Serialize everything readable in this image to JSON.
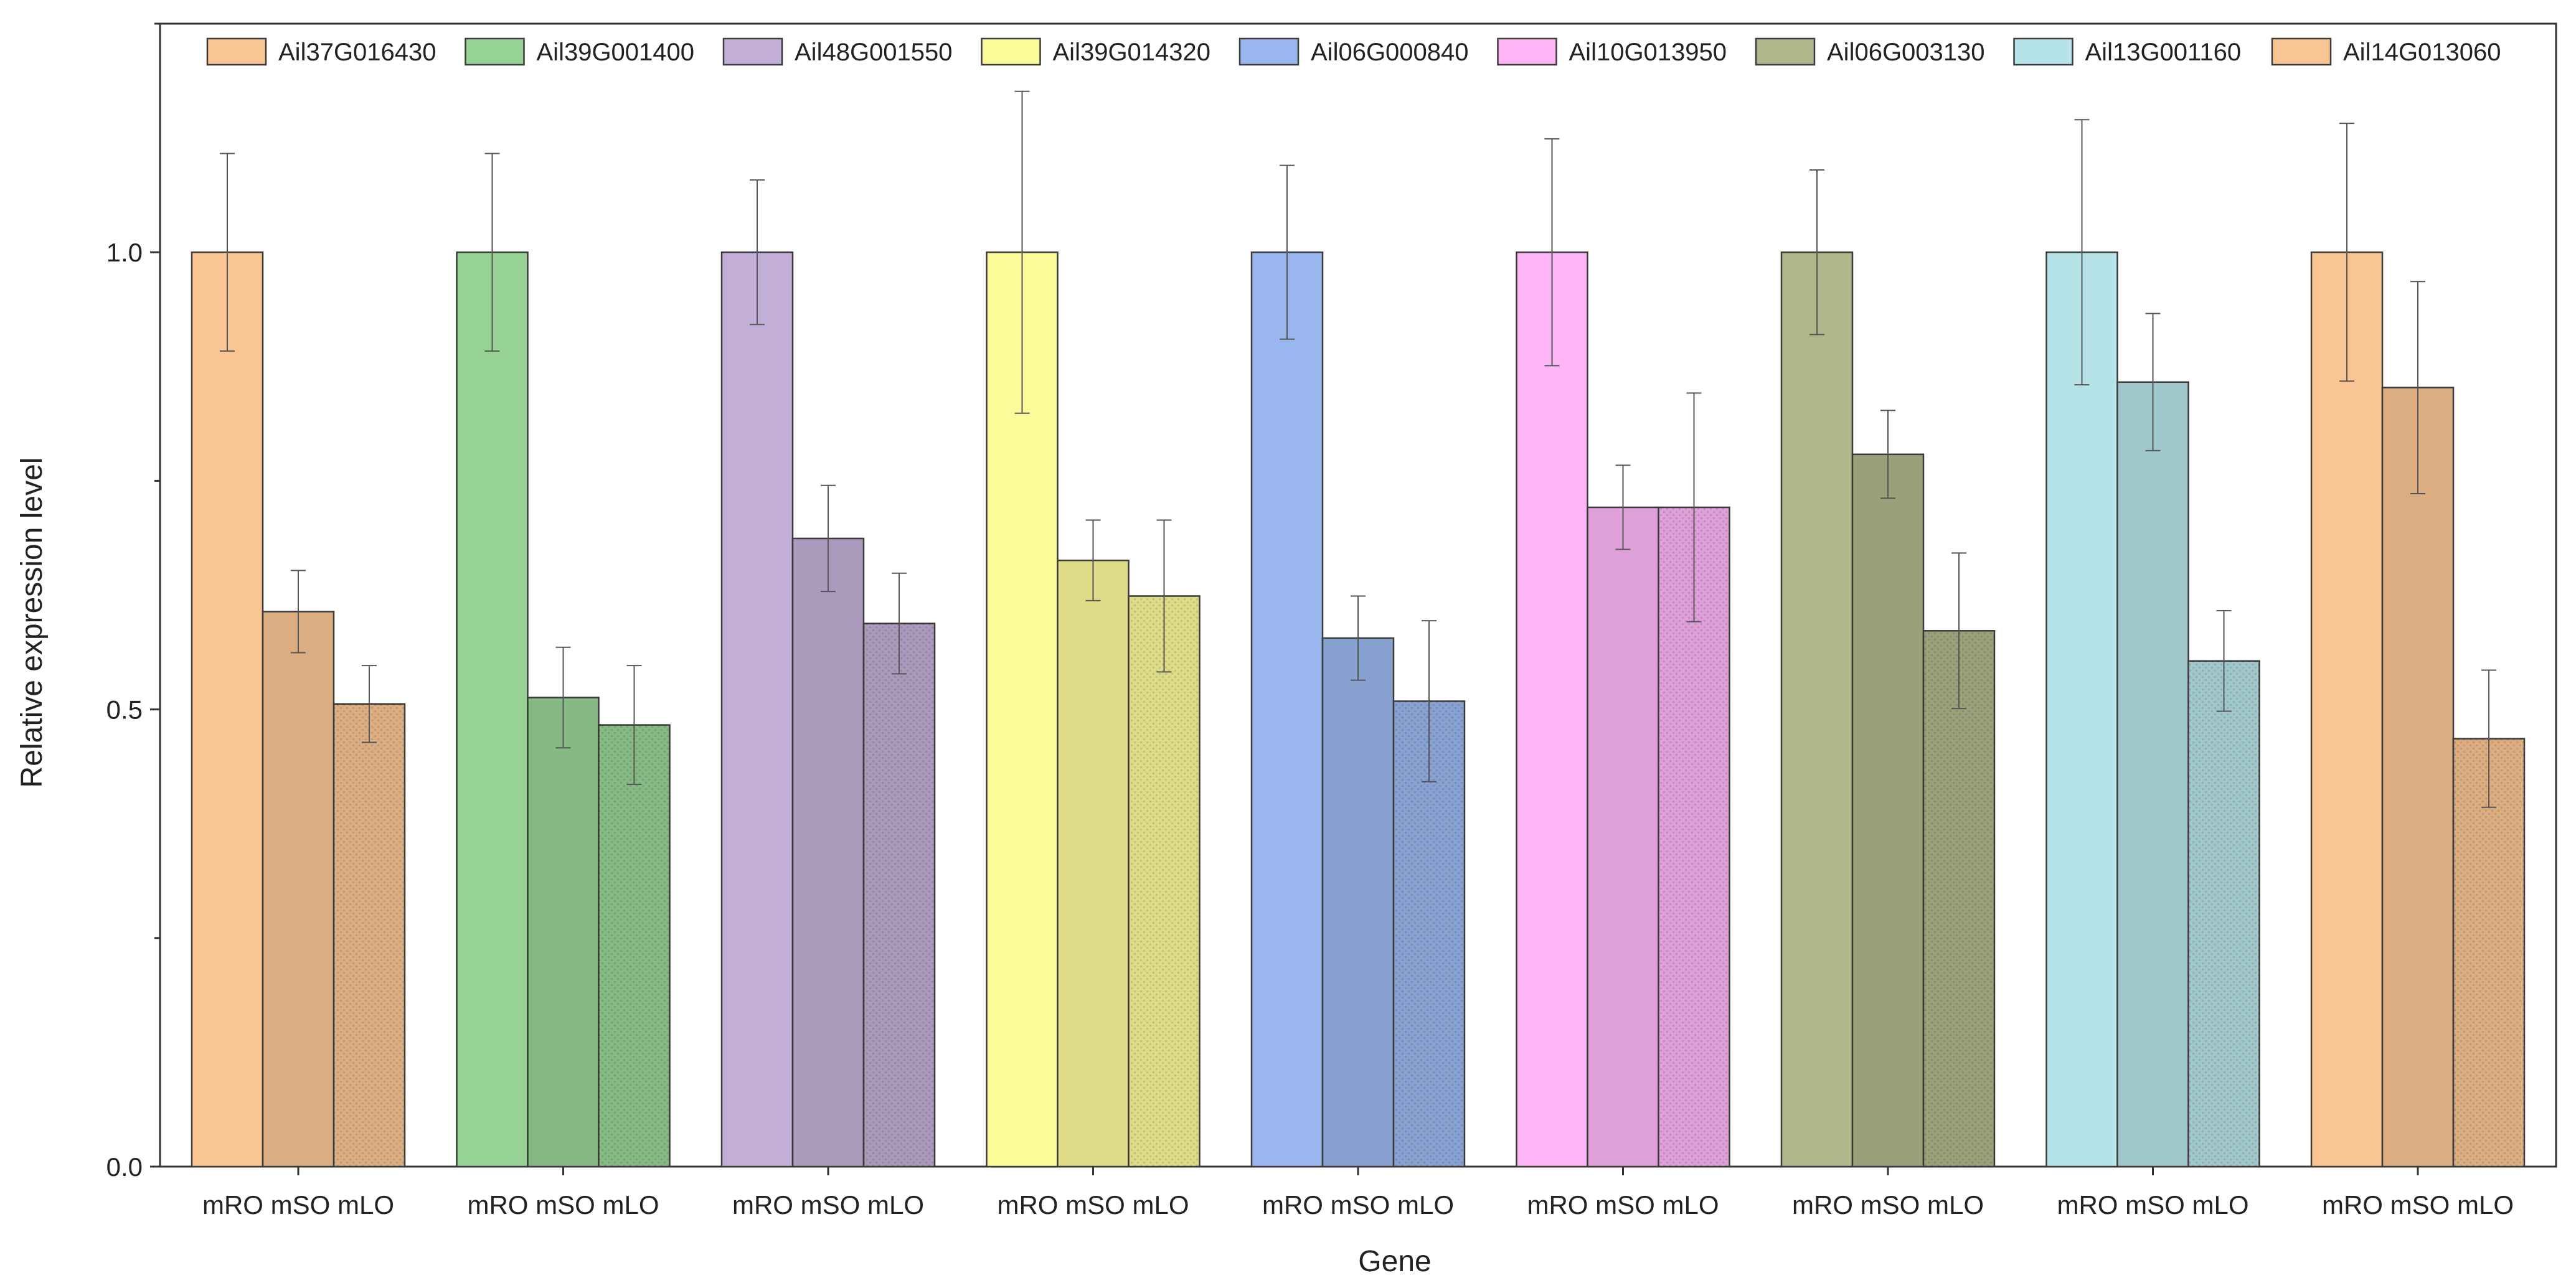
{
  "chart_data": {
    "type": "bar",
    "title": "",
    "xlabel": "Gene",
    "ylabel": "Relative expression level",
    "ylim": [
      0,
      1.25
    ],
    "yticks": [
      0.0,
      0.5,
      1.0
    ],
    "ytick_labels": [
      "0.0",
      "0.5",
      "1.0"
    ],
    "legend_position": "top",
    "sample_labels": [
      "mRO",
      "mSO",
      "mLO"
    ],
    "series": [
      {
        "name": "Ail37G016430",
        "color": "#F9C593",
        "values": [
          1.0,
          0.607,
          0.506
        ],
        "errors": [
          0.108,
          0.045,
          0.042
        ]
      },
      {
        "name": "Ail39G001400",
        "color": "#98D396",
        "values": [
          1.0,
          0.513,
          0.483
        ],
        "errors": [
          0.108,
          0.055,
          0.065
        ]
      },
      {
        "name": "Ail48G001550",
        "color": "#C2AED6",
        "values": [
          1.0,
          0.687,
          0.594
        ],
        "errors": [
          0.079,
          0.058,
          0.055
        ]
      },
      {
        "name": "Ail39G014320",
        "color": "#FDFA9A",
        "values": [
          1.0,
          0.663,
          0.624
        ],
        "errors": [
          0.176,
          0.044,
          0.083
        ]
      },
      {
        "name": "Ail06G000840",
        "color": "#99B7EE",
        "values": [
          1.0,
          0.578,
          0.509
        ],
        "errors": [
          0.095,
          0.046,
          0.088
        ]
      },
      {
        "name": "Ail10G013950",
        "color": "#FDB5F6",
        "values": [
          1.0,
          0.721,
          0.721
        ],
        "errors": [
          0.124,
          0.046,
          0.125
        ]
      },
      {
        "name": "Ail06G003130",
        "color": "#AFB68A",
        "values": [
          1.0,
          0.779,
          0.586
        ],
        "errors": [
          0.09,
          0.048,
          0.085
        ]
      },
      {
        "name": "Ail13G001160",
        "color": "#B6E3E8",
        "values": [
          1.0,
          0.858,
          0.553
        ],
        "errors": [
          0.145,
          0.075,
          0.055
        ]
      },
      {
        "name": "Ail14G013060",
        "color": "#F9C593",
        "values": [
          1.0,
          0.852,
          0.468
        ],
        "errors": [
          0.141,
          0.116,
          0.075
        ]
      }
    ]
  }
}
